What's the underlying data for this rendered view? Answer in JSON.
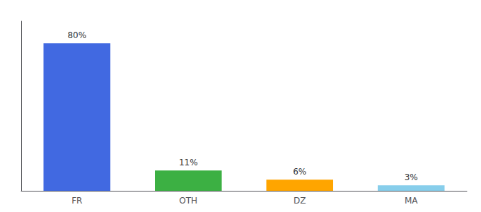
{
  "chart_data": {
    "type": "bar",
    "categories": [
      "FR",
      "OTH",
      "DZ",
      "MA"
    ],
    "values": [
      80,
      11,
      6,
      3
    ],
    "value_labels": [
      "80%",
      "11%",
      "6%",
      "3%"
    ],
    "data_labels": true,
    "colors": [
      "#4169E1",
      "#3CB043",
      "#FFA500",
      "#87CEEB"
    ],
    "ylim": [
      0,
      92
    ],
    "tick_labels": "x",
    "grid": false
  }
}
